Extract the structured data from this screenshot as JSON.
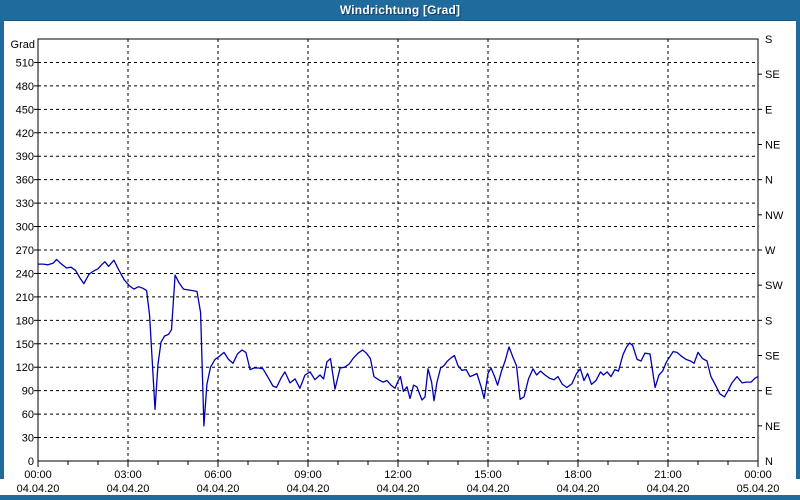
{
  "window": {
    "title": "Windrichtung [Grad]"
  },
  "colors": {
    "titlebar_bg": "#1f6b9e",
    "border": "#1f6b9e",
    "title_text": "#ffffff",
    "plot_bg": "#ffffff",
    "axis": "#000000",
    "grid": "#000000",
    "label": "#000000",
    "line": "#0000b0"
  },
  "chart_data": {
    "type": "line",
    "title": "Windrichtung [Grad]",
    "ylabel_left": "Grad",
    "ylim": [
      0,
      540
    ],
    "y_left_tick_step": 30,
    "y_left_tick_labels": [
      "0",
      "30",
      "60",
      "90",
      "120",
      "150",
      "180",
      "210",
      "240",
      "270",
      "300",
      "330",
      "360",
      "390",
      "420",
      "450",
      "480",
      "510"
    ],
    "y_right_tick_step": 45,
    "y_right_labels_bottom_to_top": [
      "N",
      "NE",
      "E",
      "SE",
      "S",
      "SW",
      "W",
      "NW",
      "N",
      "NE",
      "E",
      "SE",
      "S"
    ],
    "xlim_hours": [
      0,
      24
    ],
    "x_minor_tick_step_hours": 1,
    "grid": "dashed",
    "x_ticks": [
      {
        "h": 0,
        "time": "00:00",
        "date": "04.04.20"
      },
      {
        "h": 3,
        "time": "03:00",
        "date": "04.04.20"
      },
      {
        "h": 6,
        "time": "06:00",
        "date": "04.04.20"
      },
      {
        "h": 9,
        "time": "09:00",
        "date": "04.04.20"
      },
      {
        "h": 12,
        "time": "12:00",
        "date": "04.04.20"
      },
      {
        "h": 15,
        "time": "15:00",
        "date": "04.04.20"
      },
      {
        "h": 18,
        "time": "18:00",
        "date": "04.04.20"
      },
      {
        "h": 21,
        "time": "21:00",
        "date": "04.04.20"
      },
      {
        "h": 24,
        "time": "00:00",
        "date": "05.04.20"
      }
    ],
    "series": [
      {
        "name": "Windrichtung",
        "points": [
          [
            0,
            252
          ],
          [
            0.17,
            252
          ],
          [
            0.33,
            251
          ],
          [
            0.5,
            253
          ],
          [
            0.62,
            258
          ],
          [
            0.75,
            253
          ],
          [
            0.95,
            247
          ],
          [
            1.1,
            248
          ],
          [
            1.25,
            244
          ],
          [
            1.4,
            234
          ],
          [
            1.53,
            227
          ],
          [
            1.7,
            239
          ],
          [
            1.85,
            243
          ],
          [
            2,
            246
          ],
          [
            2.12,
            251
          ],
          [
            2.23,
            255
          ],
          [
            2.35,
            249
          ],
          [
            2.53,
            257
          ],
          [
            2.7,
            244
          ],
          [
            2.87,
            232
          ],
          [
            3.05,
            224
          ],
          [
            3.2,
            220
          ],
          [
            3.35,
            223
          ],
          [
            3.5,
            221
          ],
          [
            3.62,
            218
          ],
          [
            3.72,
            186
          ],
          [
            3.82,
            120
          ],
          [
            3.9,
            66
          ],
          [
            4,
            124
          ],
          [
            4.1,
            152
          ],
          [
            4.22,
            160
          ],
          [
            4.35,
            162
          ],
          [
            4.45,
            168
          ],
          [
            4.57,
            238
          ],
          [
            4.7,
            228
          ],
          [
            4.85,
            220
          ],
          [
            5,
            219
          ],
          [
            5.15,
            218
          ],
          [
            5.3,
            217
          ],
          [
            5.42,
            190
          ],
          [
            5.53,
            45
          ],
          [
            5.63,
            98
          ],
          [
            5.75,
            120
          ],
          [
            5.9,
            130
          ],
          [
            6.05,
            134
          ],
          [
            6.2,
            139
          ],
          [
            6.35,
            130
          ],
          [
            6.5,
            125
          ],
          [
            6.65,
            137
          ],
          [
            6.8,
            142
          ],
          [
            6.93,
            139
          ],
          [
            7.07,
            117
          ],
          [
            7.2,
            119
          ],
          [
            7.35,
            119
          ],
          [
            7.5,
            118
          ],
          [
            7.67,
            107
          ],
          [
            7.83,
            96
          ],
          [
            7.95,
            94
          ],
          [
            8.1,
            106
          ],
          [
            8.23,
            114
          ],
          [
            8.4,
            100
          ],
          [
            8.57,
            105
          ],
          [
            8.73,
            93
          ],
          [
            8.9,
            110
          ],
          [
            9.07,
            114
          ],
          [
            9.23,
            104
          ],
          [
            9.4,
            110
          ],
          [
            9.52,
            105
          ],
          [
            9.63,
            127
          ],
          [
            9.75,
            131
          ],
          [
            9.9,
            92
          ],
          [
            10.07,
            119
          ],
          [
            10.22,
            120
          ],
          [
            10.37,
            124
          ],
          [
            10.52,
            132
          ],
          [
            10.67,
            138
          ],
          [
            10.82,
            142
          ],
          [
            10.95,
            138
          ],
          [
            11.08,
            131
          ],
          [
            11.2,
            108
          ],
          [
            11.35,
            104
          ],
          [
            11.5,
            101
          ],
          [
            11.63,
            103
          ],
          [
            11.77,
            97
          ],
          [
            11.9,
            93
          ],
          [
            12,
            102
          ],
          [
            12.08,
            108
          ],
          [
            12.18,
            89
          ],
          [
            12.3,
            95
          ],
          [
            12.4,
            80
          ],
          [
            12.52,
            97
          ],
          [
            12.63,
            95
          ],
          [
            12.8,
            78
          ],
          [
            12.9,
            82
          ],
          [
            13,
            118
          ],
          [
            13.12,
            101
          ],
          [
            13.2,
            77
          ],
          [
            13.3,
            101
          ],
          [
            13.42,
            119
          ],
          [
            13.53,
            122
          ],
          [
            13.65,
            128
          ],
          [
            13.77,
            132
          ],
          [
            13.88,
            135
          ],
          [
            14,
            122
          ],
          [
            14.13,
            116
          ],
          [
            14.27,
            117
          ],
          [
            14.4,
            108
          ],
          [
            14.53,
            110
          ],
          [
            14.63,
            112
          ],
          [
            14.77,
            95
          ],
          [
            14.87,
            80
          ],
          [
            15,
            112
          ],
          [
            15.1,
            119
          ],
          [
            15.22,
            108
          ],
          [
            15.32,
            97
          ],
          [
            15.45,
            115
          ],
          [
            15.57,
            128
          ],
          [
            15.7,
            146
          ],
          [
            15.83,
            133
          ],
          [
            15.95,
            122
          ],
          [
            16.07,
            79
          ],
          [
            16.2,
            82
          ],
          [
            16.35,
            105
          ],
          [
            16.5,
            118
          ],
          [
            16.62,
            110
          ],
          [
            16.75,
            115
          ],
          [
            16.9,
            110
          ],
          [
            17.05,
            106
          ],
          [
            17.2,
            104
          ],
          [
            17.33,
            108
          ],
          [
            17.48,
            98
          ],
          [
            17.63,
            94
          ],
          [
            17.8,
            99
          ],
          [
            17.95,
            112
          ],
          [
            18.08,
            118
          ],
          [
            18.2,
            103
          ],
          [
            18.32,
            112
          ],
          [
            18.45,
            98
          ],
          [
            18.6,
            103
          ],
          [
            18.75,
            114
          ],
          [
            18.85,
            110
          ],
          [
            18.97,
            114
          ],
          [
            19.1,
            108
          ],
          [
            19.23,
            117
          ],
          [
            19.35,
            115
          ],
          [
            19.5,
            136
          ],
          [
            19.62,
            146
          ],
          [
            19.72,
            151
          ],
          [
            19.82,
            148
          ],
          [
            19.97,
            130
          ],
          [
            20.1,
            128
          ],
          [
            20.23,
            138
          ],
          [
            20.4,
            137
          ],
          [
            20.57,
            94
          ],
          [
            20.7,
            110
          ],
          [
            20.82,
            115
          ],
          [
            20.95,
            127
          ],
          [
            21.07,
            134
          ],
          [
            21.17,
            140
          ],
          [
            21.3,
            139
          ],
          [
            21.45,
            134
          ],
          [
            21.6,
            130
          ],
          [
            21.75,
            128
          ],
          [
            21.87,
            125
          ],
          [
            22,
            139
          ],
          [
            22.15,
            131
          ],
          [
            22.3,
            128
          ],
          [
            22.43,
            108
          ],
          [
            22.57,
            98
          ],
          [
            22.73,
            86
          ],
          [
            22.88,
            82
          ],
          [
            23,
            90
          ],
          [
            23.13,
            100
          ],
          [
            23.3,
            108
          ],
          [
            23.47,
            100
          ],
          [
            23.62,
            101
          ],
          [
            23.77,
            101
          ],
          [
            23.9,
            106
          ],
          [
            24,
            108
          ]
        ]
      }
    ]
  }
}
